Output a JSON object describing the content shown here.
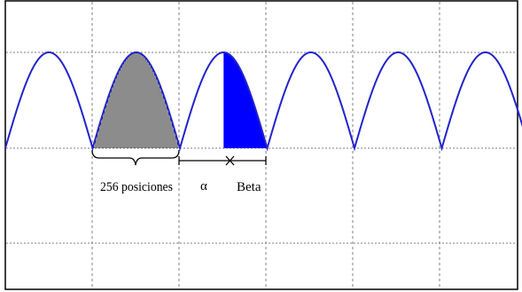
{
  "diagram": {
    "labels": {
      "positions": "256 posiciones",
      "alpha": "α",
      "beta": "Beta"
    },
    "colors": {
      "wave": "#2323cc",
      "beta_fill": "#0000ff",
      "hatch": "#000000",
      "grid": "#808080",
      "frame": "#000000",
      "background": "#ffffff"
    },
    "wave": {
      "type": "rectified-sine",
      "half_periods_shown": 6,
      "samples_in_hatched_region": 256
    }
  }
}
